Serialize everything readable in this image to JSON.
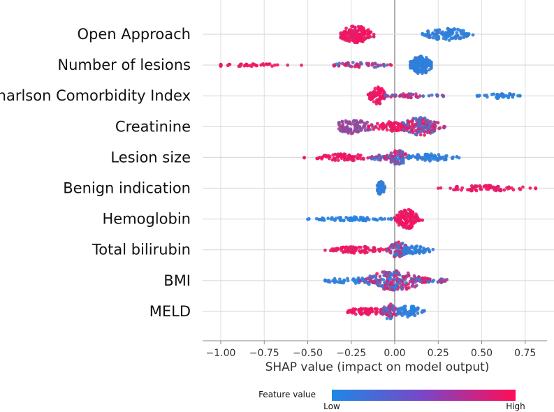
{
  "chart_data": {
    "type": "scatter",
    "subtype": "shap-beeswarm",
    "xlabel": "SHAP value (impact on model output)",
    "xlim": [
      -1.05,
      0.85
    ],
    "xticks": [
      -1.0,
      -0.75,
      -0.5,
      -0.25,
      0.0,
      0.25,
      0.5,
      0.75
    ],
    "xtick_labels": [
      "−1.00",
      "−0.75",
      "−0.50",
      "−0.25",
      "0.00",
      "0.25",
      "0.50",
      "0.75"
    ],
    "grid": "horizontal and vertical",
    "colorbar": {
      "title": "Feature value",
      "low_label": "Low",
      "high_label": "High",
      "low_color": "#1e88e5",
      "high_color": "#ff0d57"
    },
    "features": [
      {
        "name": "Open Approach",
        "clusters": [
          {
            "center": -0.22,
            "spread": 0.055,
            "range": [
              -0.31,
              -0.12
            ],
            "count": 150,
            "height": 12,
            "color": "high"
          },
          {
            "center": 0.3,
            "spread": 0.07,
            "range": [
              0.16,
              0.45
            ],
            "count": 110,
            "height": 9,
            "color": "low"
          }
        ]
      },
      {
        "name": "Number of lesions",
        "clusters": [
          {
            "center": -0.85,
            "spread": 0.15,
            "range": [
              -1.0,
              -0.5
            ],
            "count": 45,
            "height": 2,
            "color": "high"
          },
          {
            "center": -0.2,
            "spread": 0.09,
            "range": [
              -0.35,
              -0.02
            ],
            "count": 50,
            "height": 4,
            "color": "mixed"
          },
          {
            "center": 0.15,
            "spread": 0.035,
            "range": [
              0.09,
              0.21
            ],
            "count": 160,
            "height": 13,
            "color": "low"
          }
        ]
      },
      {
        "name": "Charlson Comorbidity Index",
        "clusters": [
          {
            "center": -0.1,
            "spread": 0.025,
            "range": [
              -0.18,
              -0.06
            ],
            "count": 80,
            "height": 13,
            "color": "high"
          },
          {
            "center": 0.1,
            "spread": 0.1,
            "range": [
              -0.05,
              0.28
            ],
            "count": 50,
            "height": 3,
            "color": "mixed"
          },
          {
            "center": 0.6,
            "spread": 0.06,
            "range": [
              0.47,
              0.72
            ],
            "count": 40,
            "height": 4,
            "color": "low"
          }
        ]
      },
      {
        "name": "Creatinine",
        "clusters": [
          {
            "center": -0.24,
            "spread": 0.06,
            "range": [
              -0.32,
              -0.1
            ],
            "count": 100,
            "height": 10,
            "color": "purple"
          },
          {
            "center": -0.02,
            "spread": 0.07,
            "range": [
              -0.15,
              0.08
            ],
            "count": 80,
            "height": 7,
            "color": "high"
          },
          {
            "center": 0.15,
            "spread": 0.06,
            "range": [
              0.05,
              0.33
            ],
            "count": 160,
            "height": 13,
            "color": "mixed"
          }
        ]
      },
      {
        "name": "Lesion size",
        "clusters": [
          {
            "center": -0.3,
            "spread": 0.09,
            "range": [
              -0.52,
              -0.14
            ],
            "count": 80,
            "height": 5,
            "color": "high"
          },
          {
            "center": -0.06,
            "spread": 0.05,
            "range": [
              -0.14,
              0.0
            ],
            "count": 35,
            "height": 4,
            "color": "mixed"
          },
          {
            "center": 0.02,
            "spread": 0.03,
            "range": [
              -0.02,
              0.08
            ],
            "count": 60,
            "height": 11,
            "color": "mixed"
          },
          {
            "center": 0.2,
            "spread": 0.08,
            "range": [
              0.08,
              0.37
            ],
            "count": 80,
            "height": 5,
            "color": "low"
          }
        ]
      },
      {
        "name": "Benign indication",
        "clusters": [
          {
            "center": -0.08,
            "spread": 0.012,
            "range": [
              -0.1,
              -0.05
            ],
            "count": 55,
            "height": 10,
            "color": "low"
          },
          {
            "center": 0.52,
            "spread": 0.13,
            "range": [
              0.25,
              0.81
            ],
            "count": 80,
            "height": 4,
            "color": "high"
          }
        ]
      },
      {
        "name": "Hemoglobin",
        "clusters": [
          {
            "center": -0.25,
            "spread": 0.12,
            "range": [
              -0.5,
              -0.02
            ],
            "count": 70,
            "height": 3,
            "color": "low"
          },
          {
            "center": 0.07,
            "spread": 0.035,
            "range": [
              0.0,
              0.16
            ],
            "count": 140,
            "height": 14,
            "color": "high"
          }
        ]
      },
      {
        "name": "Total bilirubin",
        "clusters": [
          {
            "center": -0.22,
            "spread": 0.08,
            "range": [
              -0.4,
              -0.05
            ],
            "count": 90,
            "height": 5,
            "color": "high"
          },
          {
            "center": 0.02,
            "spread": 0.03,
            "range": [
              -0.05,
              0.08
            ],
            "count": 90,
            "height": 11,
            "color": "mixed"
          },
          {
            "center": 0.12,
            "spread": 0.05,
            "range": [
              0.05,
              0.22
            ],
            "count": 60,
            "height": 6,
            "color": "low"
          }
        ]
      },
      {
        "name": "BMI",
        "clusters": [
          {
            "center": -0.25,
            "spread": 0.08,
            "range": [
              -0.4,
              -0.1
            ],
            "count": 50,
            "height": 4,
            "color": "low"
          },
          {
            "center": 0.0,
            "spread": 0.09,
            "range": [
              -0.2,
              0.2
            ],
            "count": 200,
            "height": 14,
            "color": "mixed"
          },
          {
            "center": 0.2,
            "spread": 0.06,
            "range": [
              0.1,
              0.3
            ],
            "count": 40,
            "height": 4,
            "color": "mixed"
          }
        ]
      },
      {
        "name": "MELD",
        "clusters": [
          {
            "center": -0.17,
            "spread": 0.06,
            "range": [
              -0.27,
              -0.08
            ],
            "count": 70,
            "height": 5,
            "color": "high"
          },
          {
            "center": -0.03,
            "spread": 0.025,
            "range": [
              -0.07,
              0.02
            ],
            "count": 60,
            "height": 11,
            "color": "mixed"
          },
          {
            "center": 0.08,
            "spread": 0.04,
            "range": [
              0.02,
              0.17
            ],
            "count": 70,
            "height": 8,
            "color": "low"
          }
        ]
      }
    ]
  }
}
